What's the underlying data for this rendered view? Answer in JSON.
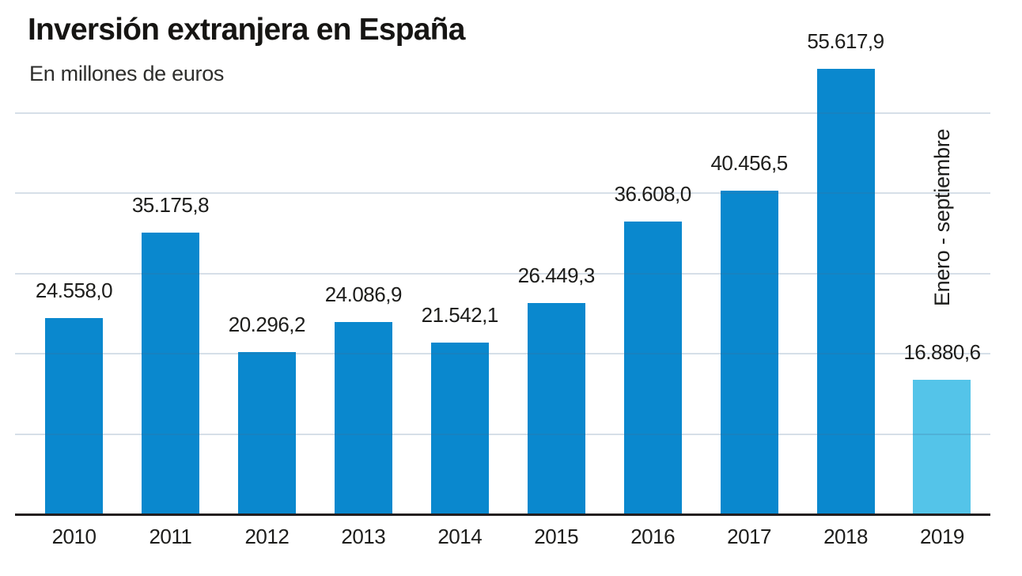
{
  "header": {
    "title": "Inversión extranjera en España",
    "subtitle": "En millones de euros"
  },
  "chart_data": {
    "type": "bar",
    "title": "Inversión extranjera en España",
    "subtitle": "En millones de euros",
    "unit": "millones de euros",
    "categories": [
      "2010",
      "2011",
      "2012",
      "2013",
      "2014",
      "2015",
      "2016",
      "2017",
      "2018",
      "2019"
    ],
    "values": [
      24558.0,
      35175.8,
      20296.2,
      24086.9,
      21542.1,
      26449.3,
      36608.0,
      40456.5,
      55617.9,
      16880.6
    ],
    "value_labels": [
      "24.558,0",
      "35.175,8",
      "20.296,2",
      "24.086,9",
      "21.542,1",
      "26.449,3",
      "36.608,0",
      "40.456,5",
      "55.617,9",
      "16.880,6"
    ],
    "ylim": [
      0,
      57200
    ],
    "gridlines": [
      10000,
      20000,
      30000,
      40000,
      50000
    ],
    "grid": "horizontal-only-light",
    "legend": "none",
    "y_axis_tick_labels": "none",
    "bar_color": "#0a88ce",
    "highlight_index": 9,
    "highlight_color": "#54c4e9",
    "annotation": {
      "text": "Enero - septiembre",
      "applies_to": "2019"
    },
    "axis_color": "#231f20",
    "gridline_color": "#dce9f3",
    "text_color": "#1d1d1b"
  }
}
